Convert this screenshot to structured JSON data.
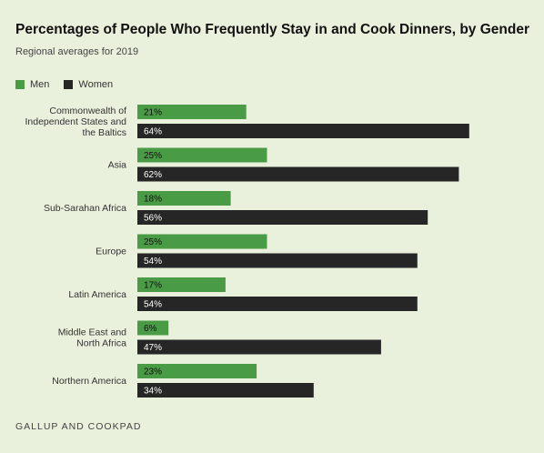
{
  "title": "Percentages of People Who Frequently Stay in and Cook Dinners, by Gender",
  "subtitle": "Regional averages for 2019",
  "source": "GALLUP AND COOKPAD",
  "colors": {
    "men": "#4a9b45",
    "women": "#262626",
    "background": "#e9f0dc"
  },
  "chart_data": {
    "type": "bar",
    "orientation": "horizontal",
    "title": "Percentages of People Who Frequently Stay in and Cook Dinners, by Gender",
    "subtitle": "Regional averages for 2019",
    "categories": [
      "Commonwealth of Independent States and the Baltics",
      "Asia",
      "Sub-Sarahan Africa",
      "Europe",
      "Latin America",
      "Middle East and North Africa",
      "Northern America"
    ],
    "category_lines": [
      [
        "Commonwealth of",
        "Independent States and",
        "the Baltics"
      ],
      [
        "Asia"
      ],
      [
        "Sub-Sarahan Africa"
      ],
      [
        "Europe"
      ],
      [
        "Latin America"
      ],
      [
        "Middle East and",
        "North Africa"
      ],
      [
        "Northern America"
      ]
    ],
    "series": [
      {
        "name": "Men",
        "values": [
          21,
          25,
          18,
          25,
          17,
          6,
          23
        ],
        "labels": [
          "21%",
          "25%",
          "18%",
          "25%",
          "17%",
          "6%",
          "23%"
        ]
      },
      {
        "name": "Women",
        "values": [
          64,
          62,
          56,
          54,
          54,
          47,
          34
        ],
        "labels": [
          "64%",
          "62%",
          "56%",
          "54%",
          "54%",
          "47%",
          "34%"
        ]
      }
    ],
    "legend": "top-left",
    "grid": false,
    "xlim": [
      0,
      64
    ],
    "unit": "%"
  }
}
